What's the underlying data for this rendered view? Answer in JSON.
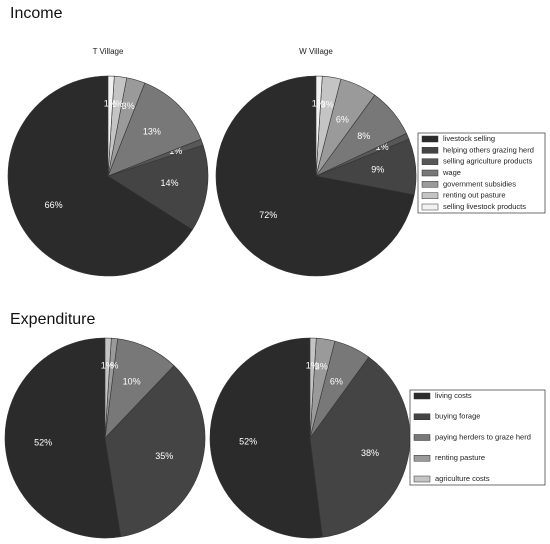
{
  "chart_data": [
    {
      "type": "pie",
      "title": "Income",
      "categories": [
        "livestock selling",
        "helping others grazing herd",
        "selling agriculture products",
        "wage",
        "government subsidies",
        "renting out pasture",
        "selling livestock products"
      ],
      "colors": [
        "#2b2b2b",
        "#444444",
        "#575757",
        "#787878",
        "#9a9a9a",
        "#c4c4c4",
        "#f2f2f2"
      ],
      "legend": "right",
      "series": [
        {
          "name": "T Village",
          "values": [
            66,
            14,
            1,
            13,
            3,
            2,
            1
          ],
          "value_labels": [
            "66%",
            "14%",
            "1%",
            "13%",
            "3%",
            "2%",
            "1%"
          ]
        },
        {
          "name": "W Village",
          "values": [
            72,
            9,
            1,
            8,
            6,
            3,
            1
          ],
          "value_labels": [
            "72%",
            "9%",
            "1%",
            "8%",
            "6%",
            "3%",
            "1%"
          ]
        }
      ]
    },
    {
      "type": "pie",
      "title": "Expenditure",
      "categories": [
        "living costs",
        "buying forage",
        "paying herders to graze herd",
        "renting pasture",
        "agriculture costs"
      ],
      "colors": [
        "#2b2b2b",
        "#444444",
        "#787878",
        "#9a9a9a",
        "#c4c4c4"
      ],
      "legend": "right",
      "series": [
        {
          "values": [
            52,
            35,
            10,
            1,
            1
          ],
          "value_labels": [
            "52%",
            "35%",
            "10%",
            "1%",
            "1%"
          ]
        },
        {
          "values": [
            52,
            38,
            6,
            3,
            1
          ],
          "value_labels": [
            "52%",
            "38%",
            "6%",
            "3%",
            "1%"
          ]
        }
      ]
    }
  ]
}
